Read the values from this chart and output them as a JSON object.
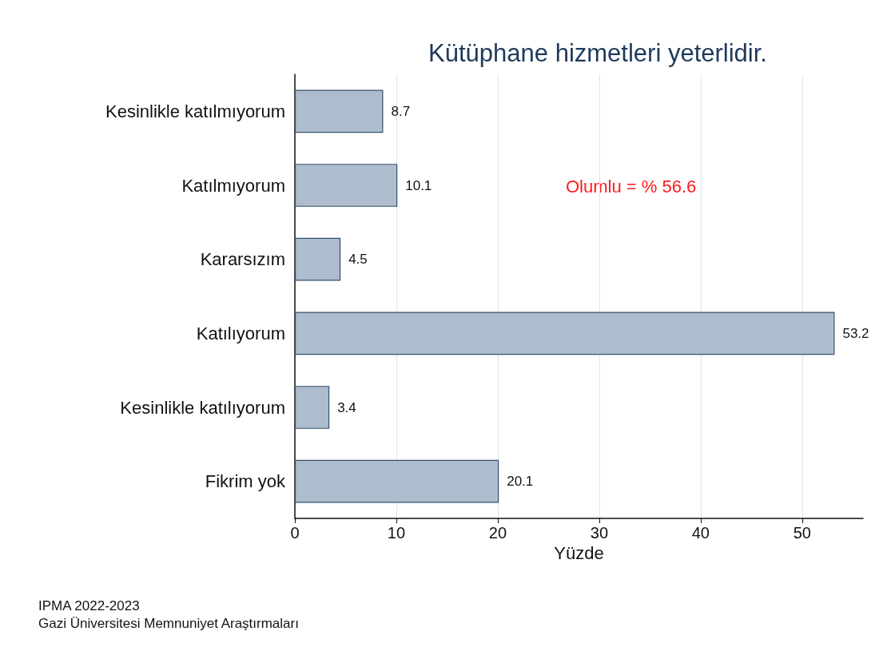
{
  "chart_data": {
    "type": "bar",
    "orientation": "horizontal",
    "title": "Kütüphane hizmetleri yeterlidir.",
    "xlabel": "Yüzde",
    "categories": [
      "Kesinlikle katılmıyorum",
      "Katılmıyorum",
      "Kararsızım",
      "Katılıyorum",
      "Kesinlikle katılıyorum",
      "Fikrim yok"
    ],
    "values": [
      8.7,
      10.1,
      4.5,
      53.2,
      3.4,
      20.1
    ],
    "color": "#aebdcd",
    "xlim": [
      0,
      56
    ],
    "xticks": [
      0,
      10,
      20,
      30,
      40,
      50
    ],
    "grid": "x",
    "data_labels": true,
    "annotations": [
      "Olumlu = % 56.6",
      "IPMA 2022-2023",
      "Gazi Üniversitesi Memnuniyet Araştırmaları"
    ]
  }
}
